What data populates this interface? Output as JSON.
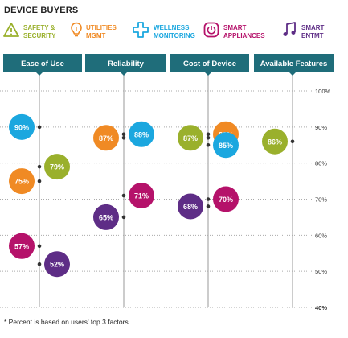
{
  "title": "DEVICE BUYERS",
  "footnote": "* Percent is based on users' top 3 factors.",
  "legend": [
    {
      "label": "Safety & Security",
      "color": "#9ab02c",
      "icon": "warning-icon"
    },
    {
      "label": "Utilities MGMT",
      "color": "#f08a24",
      "icon": "lightbulb-icon"
    },
    {
      "label": "Wellness Monitoring",
      "color": "#1ba7df",
      "icon": "plus-cross-icon"
    },
    {
      "label": "Smart Appliances",
      "color": "#b5126a",
      "icon": "power-icon"
    },
    {
      "label": "Smart ENTMT",
      "color": "#5e2d86",
      "icon": "music-note-icon"
    }
  ],
  "chart_data": {
    "type": "scatter",
    "categories": [
      "Ease of Use",
      "Reliability",
      "Cost of Device",
      "Available Features"
    ],
    "y_ticks": [
      "100%",
      "90%",
      "80%",
      "70%",
      "60%",
      "50%",
      "40%"
    ],
    "ylim": [
      40,
      100
    ],
    "series": [
      {
        "name": "Safety & Security",
        "color": "#9ab02c",
        "values": [
          79,
          null,
          87,
          86
        ]
      },
      {
        "name": "Utilities MGMT",
        "color": "#f08a24",
        "values": [
          75,
          87,
          88,
          null
        ]
      },
      {
        "name": "Wellness Monitoring",
        "color": "#1ba7df",
        "values": [
          90,
          88,
          85,
          null
        ]
      },
      {
        "name": "Smart Appliances",
        "color": "#b5126a",
        "values": [
          57,
          71,
          70,
          null
        ]
      },
      {
        "name": "Smart ENTMT",
        "color": "#5e2d86",
        "values": [
          52,
          65,
          68,
          null
        ]
      }
    ]
  }
}
